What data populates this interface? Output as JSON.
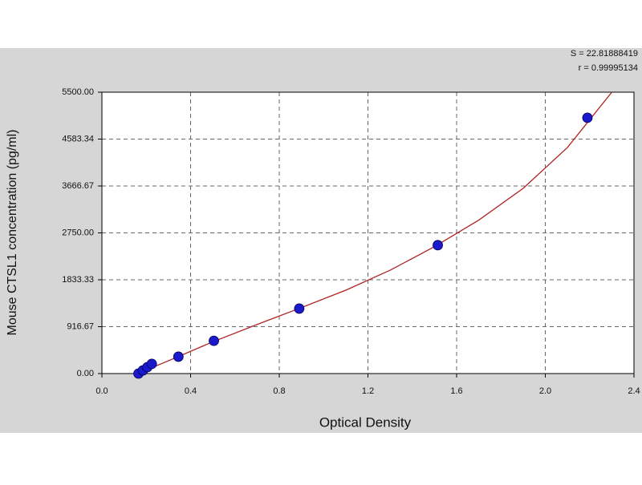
{
  "chart_data": {
    "type": "scatter",
    "x_label": "Optical Density",
    "y_label": "Mouse CTSL1 concentration (pg/ml)",
    "annotations": [
      "S = 22.81888419",
      "r = 0.99995134"
    ],
    "xlim": [
      0,
      2.4
    ],
    "xticks": [
      {
        "value": 0,
        "label": "0.0"
      },
      0.4,
      0.8,
      1.2,
      1.6,
      {
        "value": 2,
        "label": "2.0"
      },
      2.4
    ],
    "ylim": [
      0,
      5500
    ],
    "yticks": [
      {
        "value": 0,
        "label": "0.00"
      },
      916.67,
      1833.33,
      {
        "value": 2750,
        "label": "2750.00"
      },
      3666.67,
      4583.34,
      {
        "value": 5500,
        "label": "5500.00"
      }
    ],
    "grid": true,
    "series": [
      {
        "color": "#1a1acc",
        "x": [
          0.165,
          0.185,
          0.205,
          0.225,
          0.345,
          0.505,
          0.89,
          1.515,
          2.19
        ],
        "values": [
          0,
          62,
          125,
          190,
          330,
          640,
          1270,
          2510,
          5000
        ]
      }
    ],
    "fit_line": {
      "color": "#b22222",
      "x": [
        0.16,
        0.3,
        0.5,
        0.7,
        0.9,
        1.1,
        1.3,
        1.5,
        1.7,
        1.9,
        2.1,
        2.3
      ],
      "values": [
        0,
        250,
        620,
        960,
        1290,
        1630,
        2020,
        2480,
        3000,
        3620,
        4420,
        5500
      ]
    }
  }
}
